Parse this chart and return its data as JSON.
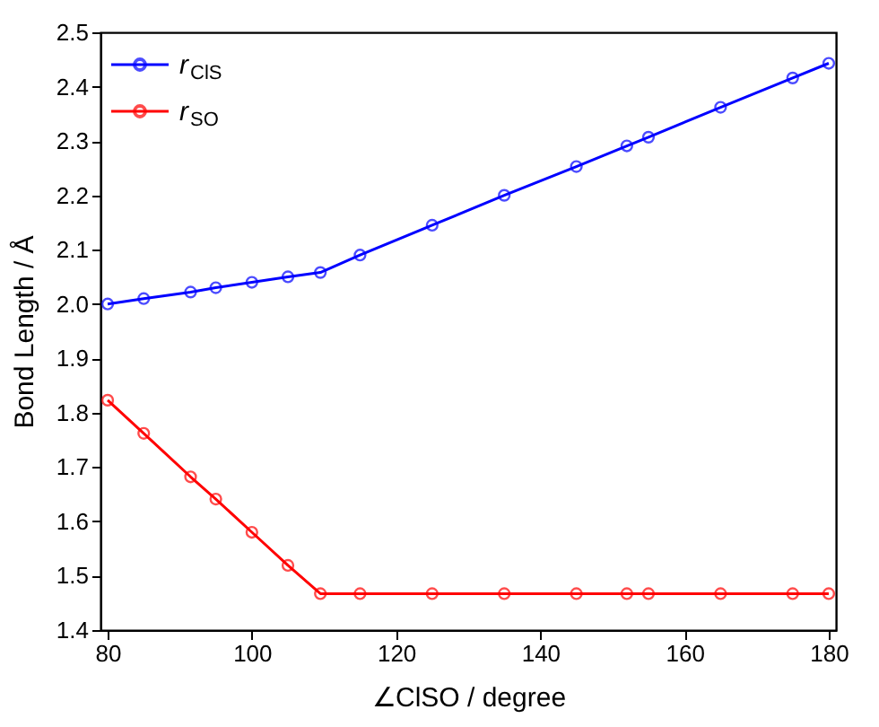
{
  "chart_data": {
    "type": "line",
    "xlabel": "∠ClSO / degree",
    "ylabel": "Bond Length / Å",
    "x": [
      80,
      85,
      91.5,
      95,
      100,
      105,
      109.5,
      115,
      125,
      135,
      145,
      152,
      155,
      165,
      175,
      180
    ],
    "series": [
      {
        "name": "r$_{ClS}$",
        "color": "#0000ff",
        "values": [
          2.0,
          2.01,
          2.022,
          2.03,
          2.04,
          2.05,
          2.058,
          2.09,
          2.145,
          2.2,
          2.253,
          2.291,
          2.307,
          2.362,
          2.416,
          2.443
        ]
      },
      {
        "name": "r$_{SO}$",
        "color": "#ff0000",
        "values": [
          1.823,
          1.762,
          1.682,
          1.641,
          1.58,
          1.519,
          1.467,
          1.467,
          1.467,
          1.467,
          1.467,
          1.467,
          1.467,
          1.467,
          1.467,
          1.467
        ]
      }
    ],
    "xlim": [
      79,
      181
    ],
    "ylim": [
      1.4,
      2.5
    ],
    "xticks": [
      80,
      100,
      120,
      140,
      160,
      180
    ],
    "yticks": [
      1.4,
      1.5,
      1.6,
      1.7,
      1.8,
      1.9,
      {
        "value": 2.0,
        "label": "2.0"
      },
      2.1,
      2.2,
      2.3,
      2.4,
      2.5
    ],
    "grid": false,
    "legend": "top left",
    "marker": "circle",
    "line_style": "solid"
  }
}
